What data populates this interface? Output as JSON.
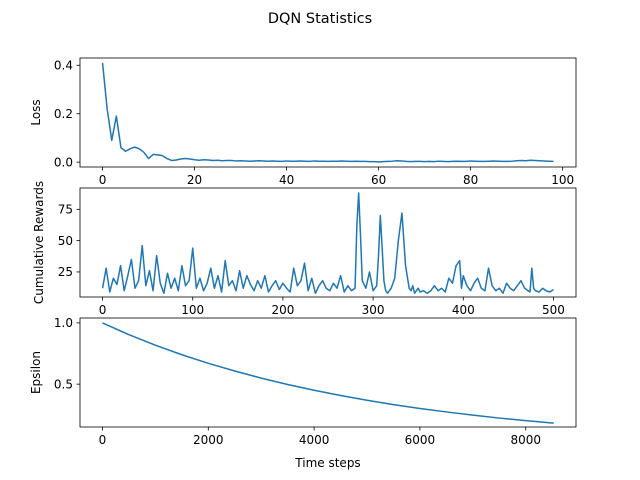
{
  "figure": {
    "title": "DQN Statistics",
    "color": "#1f77b4"
  },
  "chart_data": [
    {
      "type": "line",
      "name": "loss",
      "ylabel": "Loss",
      "xlabel": "",
      "xlim": [
        -4.9,
        102.9
      ],
      "ylim": [
        -0.02,
        0.43
      ],
      "xticks": [
        0,
        20,
        40,
        60,
        80,
        100
      ],
      "xtick_labels": [
        "0",
        "20",
        "40",
        "60",
        "80",
        "100"
      ],
      "yticks": [
        0.0,
        0.2,
        0.4
      ],
      "ytick_labels": [
        "0.0",
        "0.2",
        "0.4"
      ],
      "grid": false,
      "x": [
        0,
        1,
        2,
        3,
        4,
        5,
        6,
        7,
        8,
        9,
        10,
        11,
        12,
        13,
        14,
        15,
        16,
        17,
        18,
        19,
        20,
        21,
        22,
        23,
        24,
        25,
        26,
        27,
        28,
        29,
        30,
        31,
        32,
        33,
        34,
        35,
        36,
        37,
        38,
        39,
        40,
        41,
        42,
        43,
        44,
        45,
        46,
        47,
        48,
        49,
        50,
        51,
        52,
        53,
        54,
        55,
        56,
        57,
        58,
        59,
        60,
        61,
        62,
        63,
        64,
        65,
        66,
        67,
        68,
        69,
        70,
        71,
        72,
        73,
        74,
        75,
        76,
        77,
        78,
        79,
        80,
        81,
        82,
        83,
        84,
        85,
        86,
        87,
        88,
        89,
        90,
        91,
        92,
        93,
        94,
        95,
        96,
        97,
        98
      ],
      "y": [
        0.41,
        0.22,
        0.09,
        0.19,
        0.06,
        0.045,
        0.055,
        0.062,
        0.055,
        0.04,
        0.015,
        0.032,
        0.03,
        0.027,
        0.015,
        0.007,
        0.009,
        0.013,
        0.015,
        0.013,
        0.01,
        0.008,
        0.01,
        0.009,
        0.007,
        0.008,
        0.006,
        0.007,
        0.007,
        0.005,
        0.006,
        0.005,
        0.004,
        0.005,
        0.006,
        0.005,
        0.004,
        0.005,
        0.004,
        0.003,
        0.005,
        0.004,
        0.004,
        0.005,
        0.004,
        0.003,
        0.005,
        0.004,
        0.004,
        0.003,
        0.004,
        0.004,
        0.005,
        0.004,
        0.003,
        0.004,
        0.003,
        0.003,
        0.002,
        0.002,
        0.001,
        0.002,
        0.003,
        0.004,
        0.006,
        0.005,
        0.003,
        0.002,
        0.003,
        0.003,
        0.002,
        0.003,
        0.002,
        0.004,
        0.003,
        0.002,
        0.003,
        0.004,
        0.003,
        0.003,
        0.005,
        0.004,
        0.003,
        0.003,
        0.004,
        0.005,
        0.004,
        0.003,
        0.003,
        0.004,
        0.006,
        0.007,
        0.006,
        0.008,
        0.007,
        0.006,
        0.005,
        0.004,
        0.003
      ]
    },
    {
      "type": "line",
      "name": "rewards",
      "ylabel": "Cumulative Rewards",
      "xlabel": "",
      "xlim": [
        -25,
        525
      ],
      "ylim": [
        5,
        92
      ],
      "xticks": [
        0,
        100,
        200,
        300,
        400,
        500
      ],
      "xtick_labels": [
        "0",
        "100",
        "200",
        "300",
        "400",
        "500"
      ],
      "yticks": [
        25,
        50,
        75
      ],
      "ytick_labels": [
        "25",
        "50",
        "75"
      ],
      "grid": false,
      "x": [
        0,
        4,
        8,
        12,
        16,
        20,
        24,
        28,
        32,
        36,
        40,
        44,
        48,
        52,
        56,
        60,
        64,
        68,
        72,
        76,
        80,
        84,
        88,
        92,
        96,
        100,
        104,
        108,
        112,
        116,
        120,
        124,
        128,
        132,
        136,
        140,
        144,
        148,
        152,
        156,
        160,
        164,
        168,
        172,
        176,
        180,
        184,
        188,
        192,
        196,
        200,
        204,
        208,
        212,
        216,
        220,
        224,
        228,
        232,
        236,
        240,
        244,
        248,
        252,
        256,
        260,
        264,
        268,
        272,
        276,
        280,
        282,
        284,
        286,
        288,
        292,
        296,
        300,
        304,
        306,
        308,
        310,
        312,
        314,
        316,
        320,
        324,
        328,
        332,
        336,
        340,
        342,
        344,
        346,
        348,
        350,
        352,
        356,
        360,
        364,
        368,
        372,
        376,
        380,
        384,
        388,
        392,
        396,
        398,
        400,
        404,
        408,
        412,
        416,
        420,
        424,
        428,
        432,
        436,
        440,
        444,
        448,
        452,
        456,
        460,
        464,
        468,
        472,
        474,
        476,
        478,
        480,
        484,
        488,
        492,
        496,
        500
      ],
      "y": [
        12,
        28,
        9,
        20,
        15,
        30,
        10,
        22,
        35,
        12,
        18,
        46,
        14,
        26,
        10,
        38,
        16,
        8,
        24,
        12,
        20,
        10,
        30,
        14,
        18,
        44,
        12,
        20,
        10,
        16,
        28,
        12,
        22,
        9,
        34,
        14,
        18,
        10,
        26,
        12,
        22,
        15,
        10,
        18,
        12,
        22,
        9,
        14,
        18,
        11,
        16,
        12,
        9,
        28,
        14,
        18,
        32,
        10,
        20,
        8,
        14,
        18,
        12,
        10,
        16,
        12,
        22,
        9,
        14,
        10,
        12,
        62,
        88,
        55,
        18,
        12,
        25,
        10,
        14,
        38,
        70,
        45,
        18,
        10,
        8,
        12,
        20,
        50,
        72,
        30,
        12,
        10,
        14,
        8,
        10,
        12,
        9,
        10,
        8,
        10,
        14,
        10,
        12,
        9,
        20,
        16,
        30,
        34,
        12,
        22,
        14,
        10,
        16,
        20,
        12,
        10,
        28,
        14,
        10,
        12,
        8,
        16,
        12,
        10,
        14,
        18,
        12,
        10,
        9,
        28,
        12,
        10,
        9,
        12,
        10,
        9,
        11
      ]
    },
    {
      "type": "line",
      "name": "epsilon",
      "ylabel": "Epsilon",
      "xlabel": "Time steps",
      "xlim": [
        -425,
        8950
      ],
      "ylim": [
        0.15,
        1.04
      ],
      "xticks": [
        0,
        2000,
        4000,
        6000,
        8000
      ],
      "xtick_labels": [
        "0",
        "2000",
        "4000",
        "6000",
        "8000"
      ],
      "yticks": [
        0.5,
        1.0
      ],
      "ytick_labels": [
        "0.5",
        "1.0"
      ],
      "grid": false,
      "x": [
        0,
        500,
        1000,
        1500,
        2000,
        2500,
        3000,
        3500,
        4000,
        4500,
        5000,
        5500,
        6000,
        6500,
        7000,
        7500,
        8000,
        8500,
        8530
      ],
      "y": [
        1.0,
        0.904,
        0.818,
        0.74,
        0.67,
        0.607,
        0.549,
        0.497,
        0.45,
        0.407,
        0.368,
        0.333,
        0.301,
        0.273,
        0.247,
        0.223,
        0.202,
        0.183,
        0.182
      ]
    }
  ]
}
